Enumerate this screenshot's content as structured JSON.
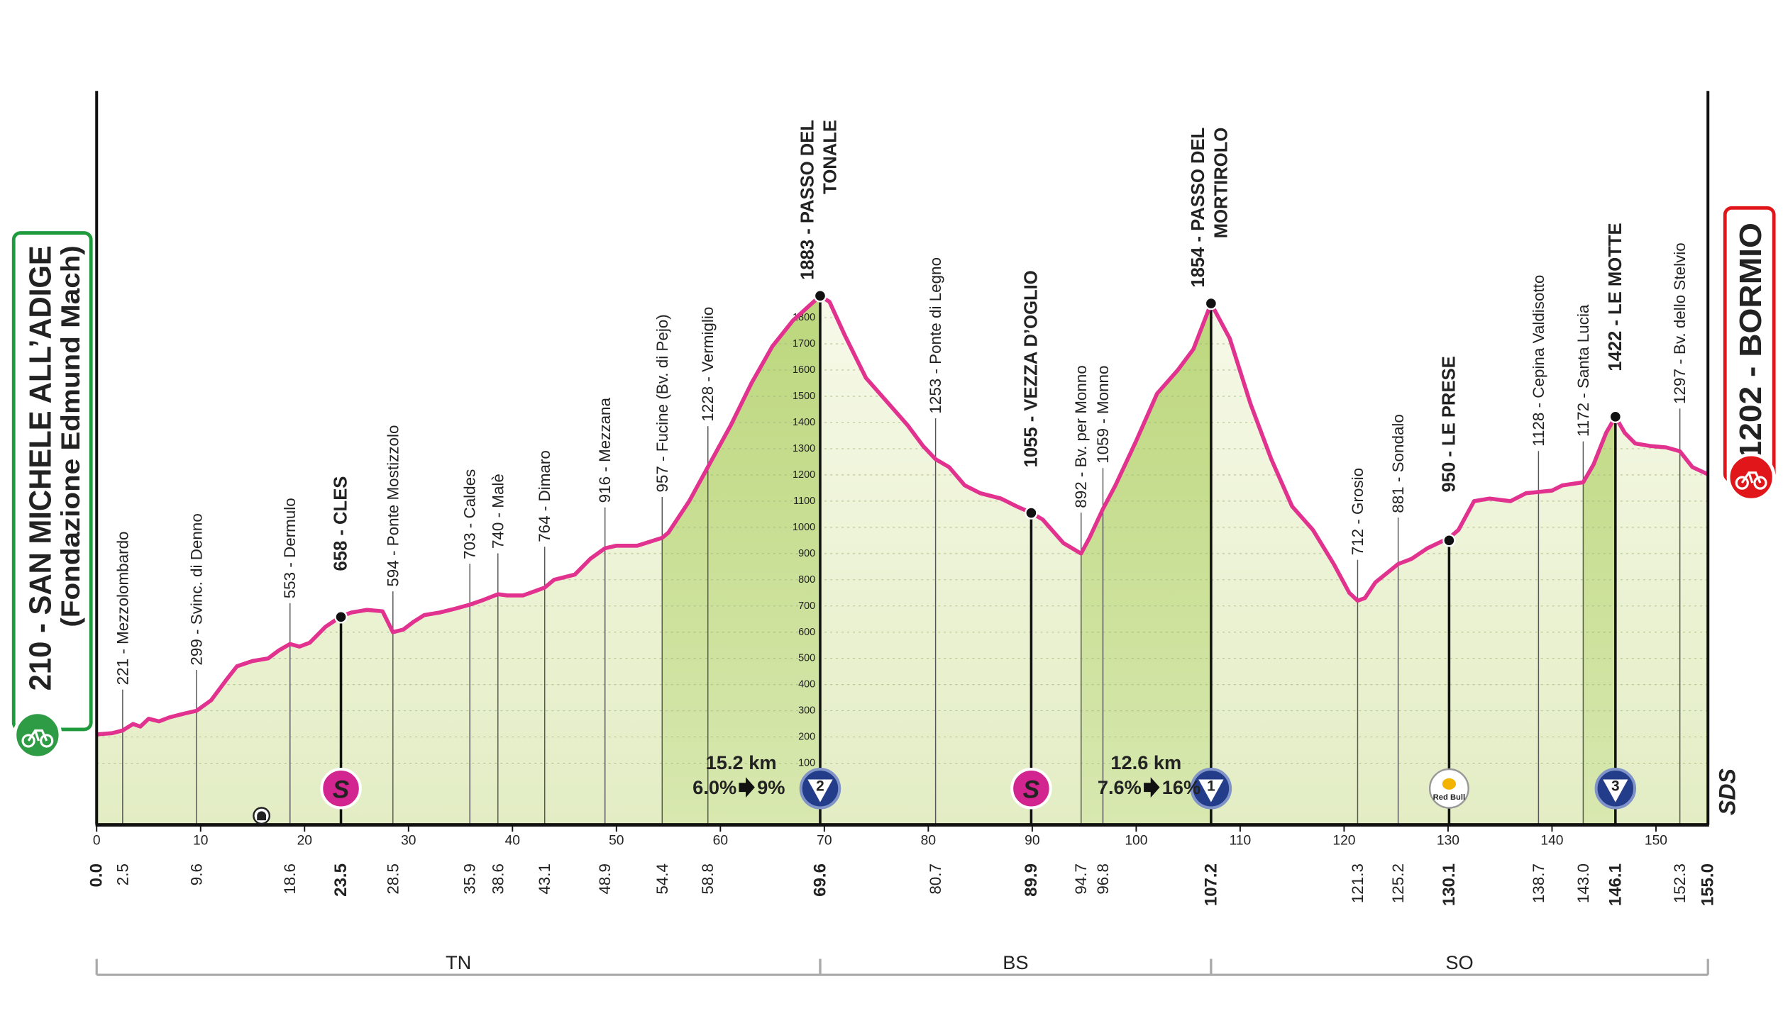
{
  "chart_data": {
    "type": "elevation-profile",
    "xlim": [
      0,
      155
    ],
    "xticks": [
      0,
      10,
      20,
      30,
      40,
      50,
      60,
      70,
      80,
      90,
      100,
      110,
      120,
      130,
      140,
      150
    ],
    "ylim": [
      -135,
      2665
    ],
    "yticks": [
      100,
      200,
      300,
      400,
      500,
      600,
      700,
      800,
      900,
      1000,
      1100,
      1200,
      1300,
      1400,
      1500,
      1600,
      1700,
      1800
    ],
    "grid": true,
    "line_color": "#e2328f",
    "start_box": {
      "lines": [
        "210 - SAN MICHELE ALL’ADIGE",
        "(Fondazione Edmund Mach)"
      ],
      "color": "#1f9a3c"
    },
    "finish_box": {
      "lines": [
        "1202 - BORMIO"
      ],
      "color": "#e0161b"
    },
    "logo": "SDS",
    "profile": {
      "km": [
        0,
        1.5,
        2.5,
        3.5,
        4.2,
        5,
        6,
        7,
        8.5,
        9.6,
        11,
        12.5,
        13.5,
        15,
        16.5,
        17.5,
        18.6,
        19.5,
        20.5,
        22,
        23.5,
        24.5,
        26,
        27.5,
        28.5,
        29.5,
        30.5,
        31.5,
        33,
        34.5,
        35.9,
        37,
        38.6,
        39.5,
        41,
        43.1,
        44,
        46,
        47.5,
        48.9,
        50,
        52,
        54.4,
        55,
        57,
        58.8,
        61,
        63,
        65,
        67,
        69.6,
        70.5,
        72,
        74,
        76,
        78,
        79.5,
        80.7,
        82,
        83.5,
        85,
        87,
        88.5,
        89.9,
        91,
        93,
        94.7,
        95.5,
        96.8,
        98,
        100,
        102,
        104,
        105.5,
        107.2,
        109,
        111,
        113,
        115,
        117,
        119,
        120.5,
        121.3,
        122,
        123,
        125.2,
        126.5,
        128,
        130.1,
        131,
        132.5,
        134,
        136,
        137.5,
        138.7,
        140,
        141,
        143,
        144,
        145.2,
        146.1,
        147,
        148,
        149.5,
        151,
        152.3,
        153.5,
        155
      ],
      "altitude": [
        210,
        215,
        225,
        250,
        240,
        270,
        260,
        275,
        290,
        300,
        340,
        420,
        470,
        490,
        500,
        530,
        555,
        545,
        560,
        620,
        660,
        675,
        685,
        680,
        600,
        610,
        640,
        665,
        675,
        690,
        705,
        720,
        745,
        740,
        740,
        770,
        800,
        820,
        880,
        920,
        930,
        930,
        960,
        980,
        1100,
        1230,
        1390,
        1550,
        1690,
        1790,
        1883,
        1860,
        1730,
        1570,
        1480,
        1390,
        1310,
        1260,
        1230,
        1160,
        1130,
        1110,
        1080,
        1055,
        1030,
        940,
        900,
        960,
        1070,
        1160,
        1330,
        1510,
        1600,
        1680,
        1854,
        1720,
        1470,
        1260,
        1080,
        990,
        860,
        750,
        720,
        730,
        790,
        860,
        880,
        920,
        960,
        990,
        1100,
        1110,
        1100,
        1130,
        1135,
        1140,
        1160,
        1172,
        1240,
        1360,
        1422,
        1360,
        1320,
        1310,
        1305,
        1290,
        1230,
        1202
      ]
    },
    "waypoints": [
      {
        "km": {
          "value": 0,
          "label": "0.0"
        },
        "altitude": 210,
        "bold": true
      },
      {
        "km": 2.5,
        "altitude": 221,
        "label": "221 - Mezzolombardo"
      },
      {
        "km": 9.6,
        "altitude": 299,
        "label": "299 - Svinc. di Denno"
      },
      {
        "km": 18.6,
        "altitude": 553,
        "label": "553 - Dermulo"
      },
      {
        "km": 23.5,
        "altitude": 658,
        "label": "658 - CLES",
        "bold": true,
        "badge": {
          "type": "sprint",
          "text": "S"
        }
      },
      {
        "km": 28.5,
        "altitude": 594,
        "label": "594 - Ponte Mostizzolo"
      },
      {
        "km": 35.9,
        "altitude": 703,
        "label": "703 - Caldes"
      },
      {
        "km": 38.6,
        "altitude": 740,
        "label": "740 - Malè"
      },
      {
        "km": 43.1,
        "altitude": 764,
        "label": "764 - Dimaro"
      },
      {
        "km": 48.9,
        "altitude": 916,
        "label": "916 - Mezzana"
      },
      {
        "km": 54.4,
        "altitude": 957,
        "label": "957 - Fucine (Bv. di Pejo)"
      },
      {
        "km": 58.8,
        "altitude": 1228,
        "label": "1228 - Vermiglio"
      },
      {
        "km": 69.6,
        "altitude": 1883,
        "label": [
          "1883 - PASSO DEL",
          "TONALE"
        ],
        "bold": true,
        "badge": {
          "type": "mountain",
          "text": "2"
        }
      },
      {
        "km": 80.7,
        "altitude": 1253,
        "label": "1253 - Ponte di Legno"
      },
      {
        "km": 89.9,
        "altitude": 1055,
        "label": "1055 - VEZZA D’OGLIO",
        "bold": true,
        "badge": {
          "type": "sprint",
          "text": "S"
        }
      },
      {
        "km": 94.7,
        "altitude": 892,
        "label": "892 - Bv. per Monno"
      },
      {
        "km": 96.8,
        "altitude": 1059,
        "label": "1059 - Monno"
      },
      {
        "km": 107.2,
        "altitude": 1854,
        "label": [
          "1854 - PASSO DEL",
          "MORTIROLO"
        ],
        "bold": true,
        "badge": {
          "type": "mountain",
          "text": "1"
        }
      },
      {
        "km": 121.3,
        "altitude": 712,
        "label": "712 - Grosio"
      },
      {
        "km": 125.2,
        "altitude": 881,
        "label": "881 - Sondalo"
      },
      {
        "km": 130.1,
        "altitude": 950,
        "label": "950 - LE PRESE",
        "bold": true,
        "badge": {
          "type": "bonus",
          "text": "Red Bull"
        }
      },
      {
        "km": 138.7,
        "altitude": 1128,
        "label": "1128 - Cepina Valdisotto"
      },
      {
        "km": {
          "value": 143,
          "label": "143.0"
        },
        "altitude": 1172,
        "label": "1172 - Santa Lucia"
      },
      {
        "km": 146.1,
        "altitude": 1422,
        "label": "1422 - LE MOTTE",
        "bold": true,
        "badge": {
          "type": "mountain",
          "text": "3"
        }
      },
      {
        "km": 152.3,
        "altitude": 1297,
        "label": "1297 - Bv. dello Stelvio"
      },
      {
        "km": {
          "value": 155,
          "label": "155.0"
        },
        "altitude": 1202,
        "bold": true
      }
    ],
    "climbs": [
      {
        "start_km": 54.4,
        "end_km": 69.6,
        "length": "15.2 km",
        "gradient": "6.0%",
        "max": "9%",
        "max_color": "#111111"
      },
      {
        "start_km": 94.7,
        "end_km": 107.2,
        "length": "12.6 km",
        "gradient": "7.6%",
        "max": "16%",
        "max_color": "#e3141b"
      },
      {
        "start_km": 143,
        "end_km": 146.1
      }
    ],
    "regions": [
      {
        "name": "TN",
        "from": 0,
        "to": 69.6
      },
      {
        "name": "BS",
        "from": 69.6,
        "to": 107.2
      },
      {
        "name": "SO",
        "from": 107.2,
        "to": 155
      }
    ]
  }
}
